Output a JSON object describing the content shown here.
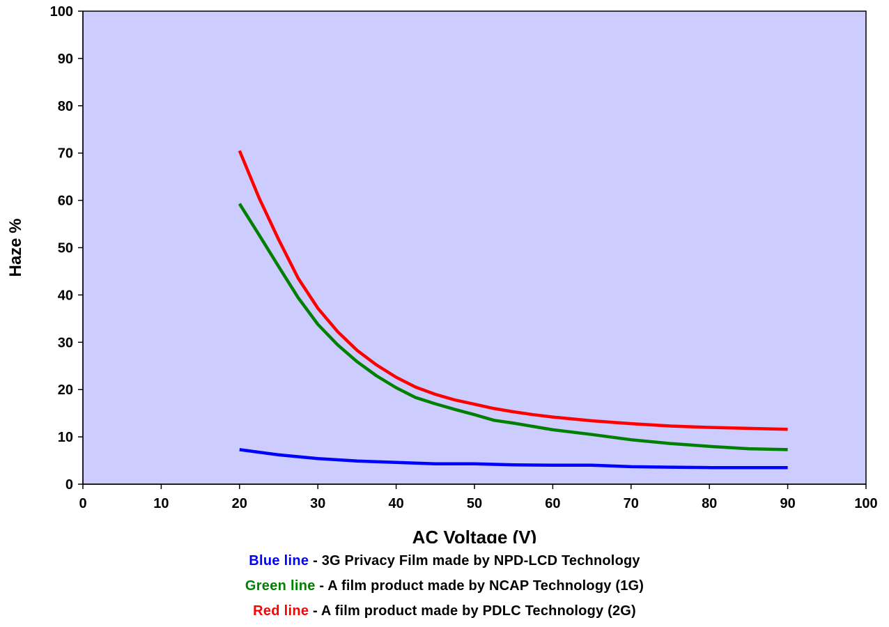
{
  "chart_data": {
    "type": "line",
    "xlabel": "AC Voltage (V)",
    "ylabel": "Haze %",
    "xlim": [
      0,
      100
    ],
    "ylim": [
      0,
      100
    ],
    "x_ticks": [
      "0",
      "10",
      "20",
      "30",
      "40",
      "50",
      "60",
      "70",
      "80",
      "90",
      "100"
    ],
    "y_ticks": [
      "0",
      "10",
      "20",
      "30",
      "40",
      "50",
      "60",
      "70",
      "80",
      "90",
      "100"
    ],
    "grid": false,
    "plot_background": "#ccccff",
    "series": [
      {
        "color": "#0000ff",
        "x": [
          20,
          25,
          30,
          35,
          40,
          45,
          50,
          55,
          60,
          65,
          70,
          75,
          80,
          85,
          90
        ],
        "y": [
          7.3,
          6.2,
          5.4,
          4.9,
          4.6,
          4.3,
          4.3,
          4.1,
          4.0,
          4.0,
          3.7,
          3.6,
          3.5,
          3.5,
          3.5
        ]
      },
      {
        "color": "#008000",
        "x": [
          20,
          22.5,
          25,
          27.5,
          30,
          32.5,
          35,
          37.5,
          40,
          42.5,
          45,
          47.5,
          50,
          52.5,
          55,
          60,
          65,
          70,
          75,
          80,
          85,
          90
        ],
        "y": [
          59.3,
          52.7,
          46.0,
          39.4,
          33.8,
          29.5,
          25.9,
          22.9,
          20.4,
          18.3,
          17.0,
          15.8,
          14.7,
          13.5,
          12.9,
          11.5,
          10.5,
          9.4,
          8.6,
          8.0,
          7.5,
          7.3
        ]
      },
      {
        "color": "#ff0000",
        "x": [
          20,
          22.5,
          25,
          27.5,
          30,
          32.5,
          35,
          37.5,
          40,
          42.5,
          45,
          47.5,
          50,
          52.5,
          55,
          57.5,
          60,
          65,
          70,
          75,
          80,
          85,
          90
        ],
        "y": [
          70.5,
          60.5,
          51.7,
          43.5,
          37.2,
          32.3,
          28.3,
          25.2,
          22.6,
          20.5,
          19.0,
          17.8,
          16.9,
          16.0,
          15.3,
          14.7,
          14.2,
          13.4,
          12.8,
          12.3,
          12.0,
          11.8,
          11.6
        ]
      }
    ]
  },
  "legend": {
    "blue": {
      "name": "Blue line",
      "desc": " - 3G Privacy Film made by NPD-LCD Technology",
      "color": "#0000ff"
    },
    "green": {
      "name": "Green line",
      "desc": " - A film product made by NCAP Technology (1G)",
      "color": "#008000"
    },
    "red": {
      "name": "Red line",
      "desc": " - A film product made by PDLC Technology (2G)",
      "color": "#ff0000"
    }
  }
}
